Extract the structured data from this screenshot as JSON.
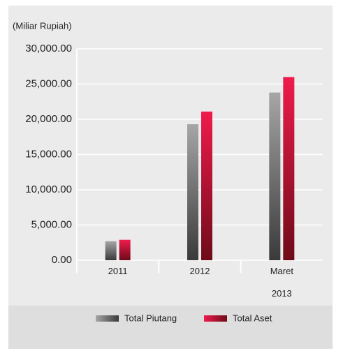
{
  "chart_data": {
    "type": "bar",
    "y_axis_label": "(Miliar Rupiah)",
    "categories": [
      "2011",
      "2012",
      "Maret 2013"
    ],
    "series": [
      {
        "name": "Total Piutang",
        "color": "#a6a6a6",
        "values": [
          2700,
          19300,
          23800
        ]
      },
      {
        "name": "Total Aset",
        "color": "#ef1b4d",
        "values": [
          2900,
          21100,
          26000
        ]
      }
    ],
    "ylim": [
      0,
      30000
    ],
    "yticks": [
      {
        "value": 0,
        "label": "0.00"
      },
      {
        "value": 5000,
        "label": "5,000.00"
      },
      {
        "value": 10000,
        "label": "10,000.00"
      },
      {
        "value": 15000,
        "label": "15,000.00"
      },
      {
        "value": 20000,
        "label": "20,000.00"
      },
      {
        "value": 25000,
        "label": "25,000.00"
      },
      {
        "value": 30000,
        "label": "30,000.00"
      }
    ],
    "grid": true
  }
}
